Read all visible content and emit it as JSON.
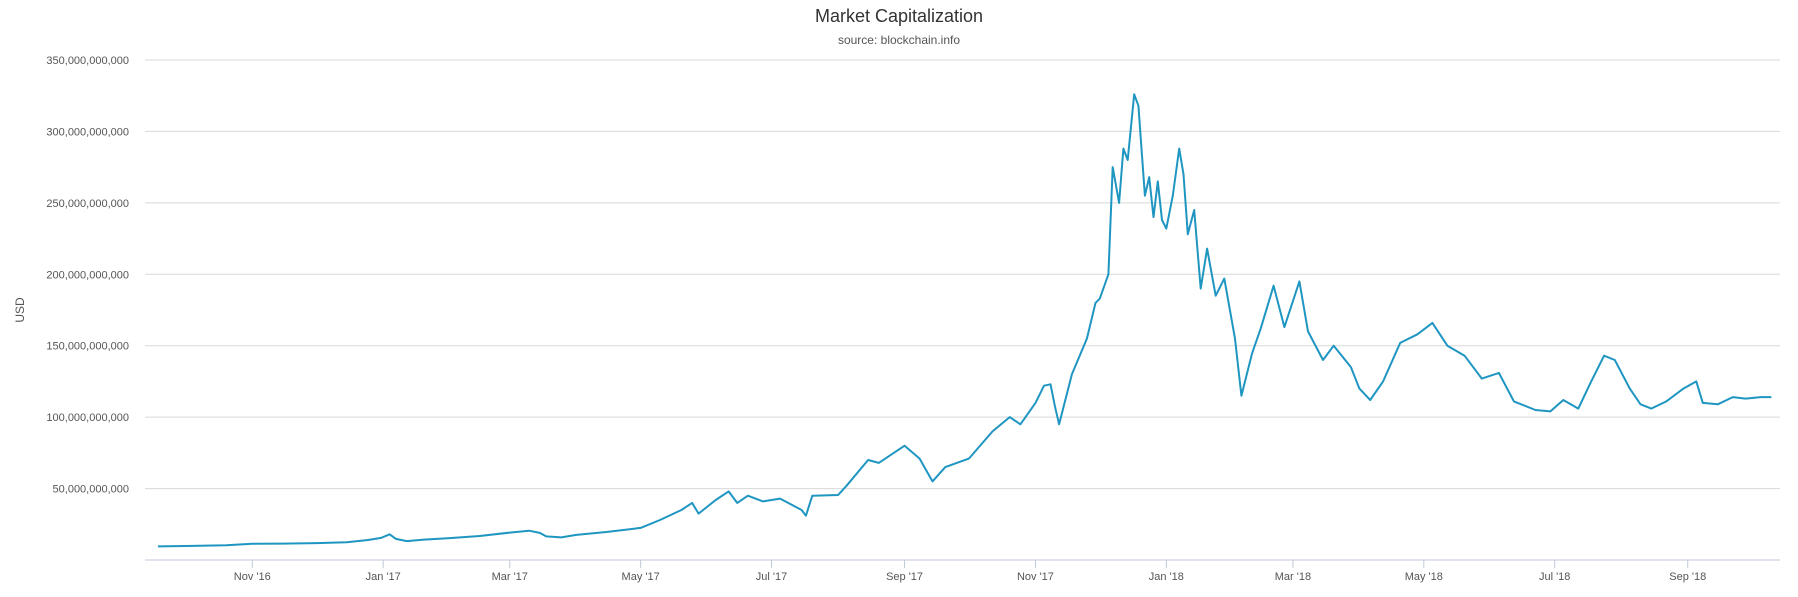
{
  "chart_data": {
    "type": "line",
    "title": "Market Capitalization",
    "subtitle": "source: blockchain.info",
    "ylabel": "USD",
    "xlabel": "",
    "x_range": [
      "2016-09-12",
      "2018-10-14"
    ],
    "ylim": [
      0,
      350000000000
    ],
    "y_ticks": [
      {
        "value": 50000000000,
        "label": "50,000,000,000"
      },
      {
        "value": 100000000000,
        "label": "100,000,000,000"
      },
      {
        "value": 150000000000,
        "label": "150,000,000,000"
      },
      {
        "value": 200000000000,
        "label": "200,000,000,000"
      },
      {
        "value": 250000000000,
        "label": "250,000,000,000"
      },
      {
        "value": 300000000000,
        "label": "300,000,000,000"
      },
      {
        "value": 350000000000,
        "label": "350,000,000,000"
      }
    ],
    "x_ticks": [
      {
        "date": "2016-11-01",
        "label": "Nov '16"
      },
      {
        "date": "2017-01-01",
        "label": "Jan '17"
      },
      {
        "date": "2017-03-01",
        "label": "Mar '17"
      },
      {
        "date": "2017-05-01",
        "label": "May '17"
      },
      {
        "date": "2017-07-01",
        "label": "Jul '17"
      },
      {
        "date": "2017-09-01",
        "label": "Sep '17"
      },
      {
        "date": "2017-11-01",
        "label": "Nov '17"
      },
      {
        "date": "2018-01-01",
        "label": "Jan '18"
      },
      {
        "date": "2018-03-01",
        "label": "Mar '18"
      },
      {
        "date": "2018-05-01",
        "label": "May '18"
      },
      {
        "date": "2018-07-01",
        "label": "Jul '18"
      },
      {
        "date": "2018-09-01",
        "label": "Sep '18"
      }
    ],
    "grid": true,
    "line_color": "#1f96c1",
    "series": [
      {
        "values": [
          [
            "2016-09-18",
            9500000000.0
          ],
          [
            "2016-10-01",
            9800000000.0
          ],
          [
            "2016-10-20",
            10300000000.0
          ],
          [
            "2016-11-01",
            11400000000.0
          ],
          [
            "2016-11-15",
            11500000000.0
          ],
          [
            "2016-12-01",
            11800000000.0
          ],
          [
            "2016-12-15",
            12400000000.0
          ],
          [
            "2016-12-25",
            14000000000.0
          ],
          [
            "2016-12-31",
            15500000000.0
          ],
          [
            "2017-01-04",
            18000000000.0
          ],
          [
            "2017-01-07",
            14800000000.0
          ],
          [
            "2017-01-12",
            13200000000.0
          ],
          [
            "2017-01-20",
            14300000000.0
          ],
          [
            "2017-02-01",
            15300000000.0
          ],
          [
            "2017-02-15",
            16800000000.0
          ],
          [
            "2017-03-01",
            19200000000.0
          ],
          [
            "2017-03-10",
            20500000000.0
          ],
          [
            "2017-03-15",
            19000000000.0
          ],
          [
            "2017-03-18",
            16500000000.0
          ],
          [
            "2017-03-25",
            15800000000.0
          ],
          [
            "2017-04-01",
            17600000000.0
          ],
          [
            "2017-04-15",
            19600000000.0
          ],
          [
            "2017-05-01",
            22500000000.0
          ],
          [
            "2017-05-10",
            28000000000.0
          ],
          [
            "2017-05-20",
            35000000000.0
          ],
          [
            "2017-05-25",
            40000000000.0
          ],
          [
            "2017-05-28",
            32500000000.0
          ],
          [
            "2017-06-05",
            42000000000.0
          ],
          [
            "2017-06-11",
            48000000000.0
          ],
          [
            "2017-06-15",
            40000000000.0
          ],
          [
            "2017-06-20",
            45000000000.0
          ],
          [
            "2017-06-27",
            41000000000.0
          ],
          [
            "2017-07-05",
            43000000000.0
          ],
          [
            "2017-07-15",
            35000000000.0
          ],
          [
            "2017-07-17",
            31000000000.0
          ],
          [
            "2017-07-20",
            45000000000.0
          ],
          [
            "2017-08-01",
            45500000000.0
          ],
          [
            "2017-08-05",
            52000000000.0
          ],
          [
            "2017-08-15",
            70000000000.0
          ],
          [
            "2017-08-20",
            68000000000.0
          ],
          [
            "2017-09-01",
            80000000000.0
          ],
          [
            "2017-09-08",
            71000000000.0
          ],
          [
            "2017-09-14",
            55000000000.0
          ],
          [
            "2017-09-20",
            65000000000.0
          ],
          [
            "2017-10-01",
            71000000000.0
          ],
          [
            "2017-10-12",
            90000000000.0
          ],
          [
            "2017-10-20",
            100000000000.0
          ],
          [
            "2017-10-25",
            95000000000.0
          ],
          [
            "2017-11-01",
            110000000000.0
          ],
          [
            "2017-11-05",
            122000000000.0
          ],
          [
            "2017-11-08",
            123000000000.0
          ],
          [
            "2017-11-10",
            108000000000.0
          ],
          [
            "2017-11-12",
            95000000000.0
          ],
          [
            "2017-11-18",
            130000000000.0
          ],
          [
            "2017-11-25",
            155000000000.0
          ],
          [
            "2017-11-29",
            180000000000.0
          ],
          [
            "2017-12-01",
            183000000000.0
          ],
          [
            "2017-12-05",
            200000000000.0
          ],
          [
            "2017-12-07",
            275000000000.0
          ],
          [
            "2017-12-10",
            250000000000.0
          ],
          [
            "2017-12-12",
            288000000000.0
          ],
          [
            "2017-12-14",
            280000000000.0
          ],
          [
            "2017-12-17",
            326000000000.0
          ],
          [
            "2017-12-19",
            318000000000.0
          ],
          [
            "2017-12-22",
            255000000000.0
          ],
          [
            "2017-12-24",
            268000000000.0
          ],
          [
            "2017-12-26",
            240000000000.0
          ],
          [
            "2017-12-28",
            265000000000.0
          ],
          [
            "2017-12-30",
            238000000000.0
          ],
          [
            "2018-01-01",
            232000000000.0
          ],
          [
            "2018-01-04",
            255000000000.0
          ],
          [
            "2018-01-07",
            288000000000.0
          ],
          [
            "2018-01-09",
            270000000000.0
          ],
          [
            "2018-01-11",
            228000000000.0
          ],
          [
            "2018-01-14",
            245000000000.0
          ],
          [
            "2018-01-17",
            190000000000.0
          ],
          [
            "2018-01-20",
            218000000000.0
          ],
          [
            "2018-01-24",
            185000000000.0
          ],
          [
            "2018-01-28",
            197000000000.0
          ],
          [
            "2018-02-02",
            155000000000.0
          ],
          [
            "2018-02-05",
            115000000000.0
          ],
          [
            "2018-02-10",
            145000000000.0
          ],
          [
            "2018-02-14",
            162000000000.0
          ],
          [
            "2018-02-20",
            192000000000.0
          ],
          [
            "2018-02-25",
            163000000000.0
          ],
          [
            "2018-03-04",
            195000000000.0
          ],
          [
            "2018-03-08",
            160000000000.0
          ],
          [
            "2018-03-15",
            140000000000.0
          ],
          [
            "2018-03-20",
            150000000000.0
          ],
          [
            "2018-03-28",
            135000000000.0
          ],
          [
            "2018-04-01",
            120000000000.0
          ],
          [
            "2018-04-06",
            112000000000.0
          ],
          [
            "2018-04-12",
            125000000000.0
          ],
          [
            "2018-04-20",
            152000000000.0
          ],
          [
            "2018-04-28",
            158000000000.0
          ],
          [
            "2018-05-05",
            166000000000.0
          ],
          [
            "2018-05-12",
            150000000000.0
          ],
          [
            "2018-05-20",
            143000000000.0
          ],
          [
            "2018-05-28",
            127000000000.0
          ],
          [
            "2018-06-05",
            131000000000.0
          ],
          [
            "2018-06-12",
            111000000000.0
          ],
          [
            "2018-06-22",
            105000000000.0
          ],
          [
            "2018-06-29",
            104000000000.0
          ],
          [
            "2018-07-05",
            112000000000.0
          ],
          [
            "2018-07-12",
            106000000000.0
          ],
          [
            "2018-07-18",
            125000000000.0
          ],
          [
            "2018-07-24",
            143000000000.0
          ],
          [
            "2018-07-29",
            140000000000.0
          ],
          [
            "2018-08-05",
            120000000000.0
          ],
          [
            "2018-08-10",
            109000000000.0
          ],
          [
            "2018-08-15",
            106000000000.0
          ],
          [
            "2018-08-22",
            111000000000.0
          ],
          [
            "2018-08-30",
            120000000000.0
          ],
          [
            "2018-09-05",
            125000000000.0
          ],
          [
            "2018-09-08",
            110000000000.0
          ],
          [
            "2018-09-15",
            109000000000.0
          ],
          [
            "2018-09-22",
            114000000000.0
          ],
          [
            "2018-09-28",
            113000000000.0
          ],
          [
            "2018-10-05",
            114000000000.0
          ],
          [
            "2018-10-10",
            114000000000.0
          ]
        ]
      }
    ]
  }
}
